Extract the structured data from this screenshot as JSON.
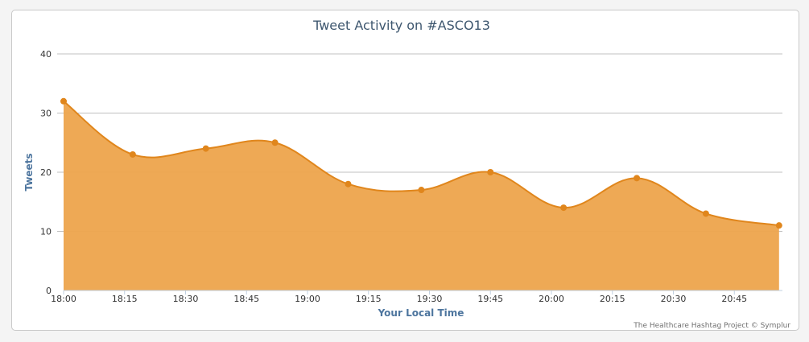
{
  "chart_data": {
    "type": "area",
    "title": "Tweet Activity on #ASCO13",
    "xlabel": "Your Local Time",
    "ylabel": "Tweets",
    "x_tick_labels": [
      "18:00",
      "18:15",
      "18:30",
      "18:45",
      "19:00",
      "19:15",
      "19:30",
      "19:45",
      "20:00",
      "20:15",
      "20:30",
      "20:45"
    ],
    "y_ticks": [
      0,
      10,
      20,
      30,
      40
    ],
    "ylim": [
      0,
      40
    ],
    "x_minutes_range": [
      0,
      176
    ],
    "grid": true,
    "legend": "none",
    "series": [
      {
        "x": [
          "18:00",
          "18:17",
          "18:35",
          "18:52",
          "19:10",
          "19:28",
          "19:45",
          "20:03",
          "20:21",
          "20:38",
          "20:56"
        ],
        "values": [
          32,
          23,
          24,
          25,
          18,
          17,
          20,
          14,
          19,
          13,
          11
        ]
      }
    ],
    "colors": {
      "fill": "#eda64f",
      "line": "#e0861c",
      "marker": "#e0861c"
    }
  },
  "credits": "The Healthcare Hashtag Project © Symplur"
}
